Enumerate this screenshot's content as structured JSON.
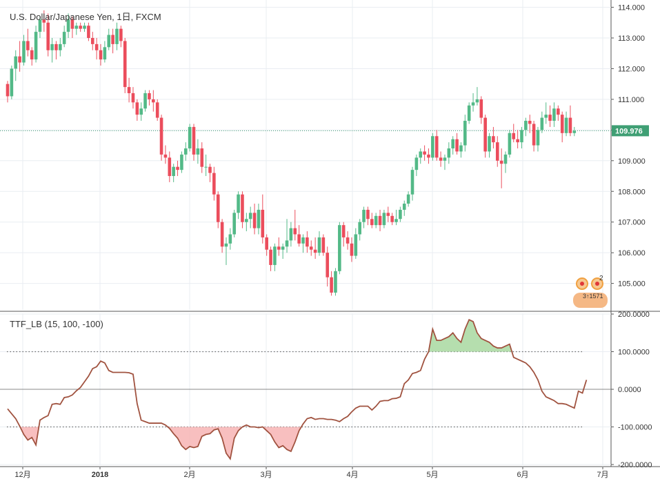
{
  "title": "U.S. Dollar/Japanese Yen, 1日, FXCM",
  "indicator_title": "TTF_LB (15, 100, -100)",
  "last_price_label": "109.976",
  "colors": {
    "up": "#53b987",
    "down": "#eb4d5c",
    "price_line": "#3f9f74",
    "indicator_line": "#a0523f",
    "fill_positive": "#a8d8a0",
    "fill_negative": "#f7b4b4",
    "grid": "#e9edf2",
    "axis_text": "#333333"
  },
  "markers": {
    "count_label": "2",
    "label": "3↑1571"
  },
  "chart_data": [
    {
      "type": "candlestick",
      "title": "U.S. Dollar/Japanese Yen, 1日, FXCM",
      "ylim": [
        104.5,
        114.1
      ],
      "y_ticks": [
        "114.000",
        "113.000",
        "112.000",
        "111.000",
        "110.000",
        "109.000",
        "108.000",
        "107.000",
        "106.000",
        "105.000"
      ],
      "x_ticks": [
        "12月",
        "2018",
        "2月",
        "3月",
        "4月",
        "5月",
        "6月",
        "7月"
      ],
      "last_price": 109.976,
      "grid": true,
      "candles": [
        [
          111.5,
          111.6,
          110.9,
          111.1
        ],
        [
          111.1,
          112.1,
          111.0,
          112.0
        ],
        [
          112.0,
          112.6,
          111.6,
          112.4
        ],
        [
          112.4,
          112.9,
          111.9,
          112.2
        ],
        [
          112.2,
          113.1,
          112.1,
          112.9
        ],
        [
          112.9,
          113.3,
          112.4,
          112.6
        ],
        [
          112.6,
          112.7,
          112.1,
          112.3
        ],
        [
          112.3,
          113.4,
          112.2,
          113.2
        ],
        [
          113.2,
          113.7,
          113.0,
          113.6
        ],
        [
          113.6,
          113.9,
          113.2,
          113.5
        ],
        [
          113.5,
          113.8,
          112.4,
          112.6
        ],
        [
          112.6,
          113.0,
          112.2,
          112.8
        ],
        [
          112.8,
          112.9,
          112.3,
          112.6
        ],
        [
          112.6,
          113.0,
          112.4,
          112.8
        ],
        [
          112.8,
          113.4,
          112.7,
          113.2
        ],
        [
          113.2,
          113.8,
          113.0,
          113.6
        ],
        [
          113.6,
          113.7,
          113.0,
          113.3
        ],
        [
          113.3,
          113.5,
          113.1,
          113.4
        ],
        [
          113.4,
          113.5,
          113.2,
          113.3
        ],
        [
          113.3,
          113.5,
          113.2,
          113.4
        ],
        [
          113.4,
          113.5,
          112.9,
          113.0
        ],
        [
          113.0,
          113.2,
          112.6,
          112.8
        ],
        [
          112.8,
          113.0,
          112.3,
          112.6
        ],
        [
          112.6,
          112.8,
          112.1,
          112.3
        ],
        [
          112.3,
          112.9,
          112.2,
          112.7
        ],
        [
          112.7,
          113.3,
          112.6,
          113.1
        ],
        [
          113.1,
          113.3,
          112.5,
          112.8
        ],
        [
          112.8,
          113.5,
          112.6,
          113.3
        ],
        [
          113.3,
          113.4,
          112.7,
          112.9
        ],
        [
          112.9,
          113.0,
          111.2,
          111.4
        ],
        [
          111.4,
          111.7,
          110.9,
          111.2
        ],
        [
          111.2,
          111.4,
          110.7,
          110.9
        ],
        [
          110.9,
          111.0,
          110.3,
          110.5
        ],
        [
          110.5,
          110.9,
          110.3,
          110.7
        ],
        [
          110.7,
          111.3,
          110.6,
          111.2
        ],
        [
          111.2,
          111.3,
          110.8,
          111.0
        ],
        [
          111.0,
          111.3,
          110.6,
          110.9
        ],
        [
          110.9,
          111.0,
          110.3,
          110.4
        ],
        [
          110.4,
          110.5,
          109.0,
          109.2
        ],
        [
          109.2,
          109.5,
          108.9,
          109.1
        ],
        [
          109.1,
          109.3,
          108.3,
          108.5
        ],
        [
          108.5,
          108.9,
          108.3,
          108.8
        ],
        [
          108.8,
          109.0,
          108.5,
          108.7
        ],
        [
          108.7,
          109.3,
          108.6,
          109.2
        ],
        [
          109.2,
          109.6,
          109.0,
          109.4
        ],
        [
          109.4,
          110.2,
          109.3,
          110.1
        ],
        [
          110.1,
          110.2,
          109.0,
          109.2
        ],
        [
          109.2,
          109.7,
          108.9,
          109.4
        ],
        [
          109.4,
          109.6,
          108.6,
          108.8
        ],
        [
          108.8,
          109.2,
          108.5,
          108.8
        ],
        [
          108.8,
          108.9,
          108.3,
          108.6
        ],
        [
          108.6,
          108.8,
          107.7,
          107.9
        ],
        [
          107.9,
          108.0,
          106.8,
          107.0
        ],
        [
          107.0,
          107.1,
          106.0,
          106.2
        ],
        [
          106.2,
          106.5,
          105.6,
          106.3
        ],
        [
          106.3,
          106.8,
          106.1,
          106.6
        ],
        [
          106.6,
          107.4,
          106.5,
          107.3
        ],
        [
          107.3,
          108.0,
          107.1,
          107.9
        ],
        [
          107.9,
          108.0,
          106.8,
          107.0
        ],
        [
          107.0,
          107.3,
          106.7,
          107.1
        ],
        [
          107.1,
          107.5,
          106.8,
          107.3
        ],
        [
          107.3,
          107.6,
          106.6,
          106.8
        ],
        [
          106.8,
          107.6,
          106.6,
          107.4
        ],
        [
          107.4,
          107.9,
          106.3,
          106.5
        ],
        [
          106.5,
          106.6,
          105.9,
          106.1
        ],
        [
          106.1,
          106.2,
          105.4,
          105.6
        ],
        [
          105.6,
          106.3,
          105.4,
          106.2
        ],
        [
          106.2,
          106.5,
          105.9,
          106.1
        ],
        [
          106.1,
          106.3,
          105.8,
          106.2
        ],
        [
          106.2,
          107.1,
          106.0,
          106.4
        ],
        [
          106.4,
          107.0,
          106.2,
          106.8
        ],
        [
          106.8,
          107.4,
          106.4,
          106.6
        ],
        [
          106.6,
          106.9,
          106.2,
          106.3
        ],
        [
          106.3,
          106.6,
          106.0,
          106.5
        ],
        [
          106.5,
          106.7,
          106.0,
          106.2
        ],
        [
          106.2,
          106.4,
          105.9,
          106.1
        ],
        [
          106.1,
          106.5,
          105.8,
          106.0
        ],
        [
          106.0,
          106.7,
          105.9,
          106.5
        ],
        [
          106.5,
          106.6,
          105.9,
          106.0
        ],
        [
          106.0,
          106.2,
          104.9,
          105.2
        ],
        [
          105.2,
          105.4,
          104.6,
          104.7
        ],
        [
          104.7,
          105.5,
          104.6,
          105.4
        ],
        [
          105.4,
          107.0,
          105.3,
          106.9
        ],
        [
          106.9,
          107.0,
          106.2,
          106.5
        ],
        [
          106.5,
          106.7,
          106.1,
          106.3
        ],
        [
          106.3,
          106.5,
          105.7,
          105.9
        ],
        [
          105.9,
          106.8,
          105.8,
          106.6
        ],
        [
          106.6,
          107.1,
          106.4,
          107.0
        ],
        [
          107.0,
          107.5,
          106.8,
          107.4
        ],
        [
          107.4,
          107.5,
          106.9,
          107.1
        ],
        [
          107.1,
          107.3,
          106.8,
          106.9
        ],
        [
          106.9,
          107.3,
          106.8,
          107.2
        ],
        [
          107.2,
          107.4,
          106.7,
          106.9
        ],
        [
          106.9,
          107.4,
          106.8,
          107.3
        ],
        [
          107.3,
          107.5,
          107.0,
          107.2
        ],
        [
          107.2,
          107.3,
          106.9,
          107.0
        ],
        [
          107.0,
          107.4,
          106.9,
          107.1
        ],
        [
          107.1,
          107.5,
          107.0,
          107.4
        ],
        [
          107.4,
          107.7,
          107.2,
          107.6
        ],
        [
          107.6,
          108.0,
          107.5,
          107.9
        ],
        [
          107.9,
          108.8,
          107.7,
          108.7
        ],
        [
          108.7,
          109.2,
          108.5,
          109.1
        ],
        [
          109.1,
          109.4,
          108.9,
          109.3
        ],
        [
          109.3,
          109.5,
          109.0,
          109.2
        ],
        [
          109.2,
          109.4,
          108.9,
          109.1
        ],
        [
          109.1,
          109.9,
          109.0,
          109.8
        ],
        [
          109.8,
          110.0,
          109.0,
          109.1
        ],
        [
          109.1,
          109.3,
          108.8,
          109.0
        ],
        [
          109.0,
          109.2,
          108.7,
          109.1
        ],
        [
          109.1,
          109.6,
          108.9,
          109.4
        ],
        [
          109.4,
          109.8,
          109.2,
          109.7
        ],
        [
          109.7,
          109.9,
          109.2,
          109.3
        ],
        [
          109.3,
          109.6,
          109.1,
          109.5
        ],
        [
          109.5,
          110.5,
          109.3,
          110.3
        ],
        [
          110.3,
          110.9,
          110.2,
          110.8
        ],
        [
          110.8,
          111.2,
          110.6,
          110.9
        ],
        [
          110.9,
          111.4,
          110.8,
          111.0
        ],
        [
          111.0,
          111.1,
          110.2,
          110.4
        ],
        [
          110.4,
          110.5,
          109.1,
          109.3
        ],
        [
          109.3,
          109.9,
          109.1,
          109.8
        ],
        [
          109.8,
          110.1,
          109.4,
          109.6
        ],
        [
          109.6,
          109.8,
          108.8,
          109.0
        ],
        [
          109.0,
          109.4,
          108.1,
          108.9
        ],
        [
          108.9,
          109.3,
          108.6,
          109.2
        ],
        [
          109.2,
          110.0,
          109.1,
          109.9
        ],
        [
          109.9,
          110.2,
          109.6,
          109.7
        ],
        [
          109.7,
          110.0,
          109.4,
          109.6
        ],
        [
          109.6,
          110.1,
          109.4,
          110.0
        ],
        [
          110.0,
          110.4,
          109.8,
          110.3
        ],
        [
          110.3,
          110.5,
          109.9,
          110.2
        ],
        [
          110.2,
          110.3,
          109.3,
          109.5
        ],
        [
          109.5,
          110.1,
          109.3,
          110.0
        ],
        [
          110.0,
          110.6,
          109.9,
          110.4
        ],
        [
          110.4,
          110.9,
          110.2,
          110.5
        ],
        [
          110.5,
          110.8,
          110.1,
          110.3
        ],
        [
          110.3,
          110.9,
          110.1,
          110.7
        ],
        [
          110.7,
          110.8,
          110.3,
          110.5
        ],
        [
          110.5,
          110.6,
          109.6,
          109.9
        ],
        [
          109.9,
          110.6,
          109.8,
          110.4
        ],
        [
          110.4,
          110.8,
          109.8,
          109.9
        ],
        [
          109.9,
          110.1,
          109.8,
          109.976
        ]
      ]
    },
    {
      "type": "line",
      "title": "TTF_LB (15, 100, -100)",
      "ylim": [
        -200,
        200
      ],
      "y_ticks": [
        "200.0000",
        "100.0000",
        "0.0000",
        "-100.0000",
        "-200.0000"
      ],
      "levels": [
        100,
        0,
        -100
      ],
      "grid": true,
      "values": [
        -52,
        -65,
        -78,
        -98,
        -120,
        -135,
        -128,
        -148,
        -82,
        -75,
        -70,
        -40,
        -38,
        -40,
        -22,
        -20,
        -15,
        -4,
        5,
        20,
        35,
        55,
        60,
        75,
        70,
        50,
        45,
        45,
        45,
        45,
        44,
        40,
        -38,
        -82,
        -86,
        -90,
        -90,
        -90,
        -90,
        -95,
        -104,
        -118,
        -130,
        -150,
        -160,
        -152,
        -155,
        -152,
        -125,
        -120,
        -118,
        -108,
        -105,
        -130,
        -170,
        -185,
        -130,
        -110,
        -100,
        -95,
        -100,
        -100,
        -102,
        -100,
        -110,
        -120,
        -140,
        -155,
        -150,
        -160,
        -165,
        -140,
        -110,
        -92,
        -78,
        -75,
        -80,
        -78,
        -78,
        -80,
        -80,
        -82,
        -86,
        -78,
        -72,
        -60,
        -50,
        -45,
        -45,
        -45,
        -55,
        -45,
        -32,
        -30,
        -30,
        -25,
        -24,
        -20,
        15,
        25,
        42,
        45,
        50,
        80,
        100,
        160,
        130,
        130,
        135,
        140,
        150,
        135,
        125,
        160,
        185,
        180,
        150,
        135,
        130,
        125,
        115,
        110,
        110,
        115,
        120,
        85,
        80,
        75,
        70,
        60,
        45,
        25,
        -5,
        -20,
        -25,
        -30,
        -38,
        -38,
        -40,
        -45,
        -50,
        -5,
        -10,
        25
      ]
    }
  ]
}
